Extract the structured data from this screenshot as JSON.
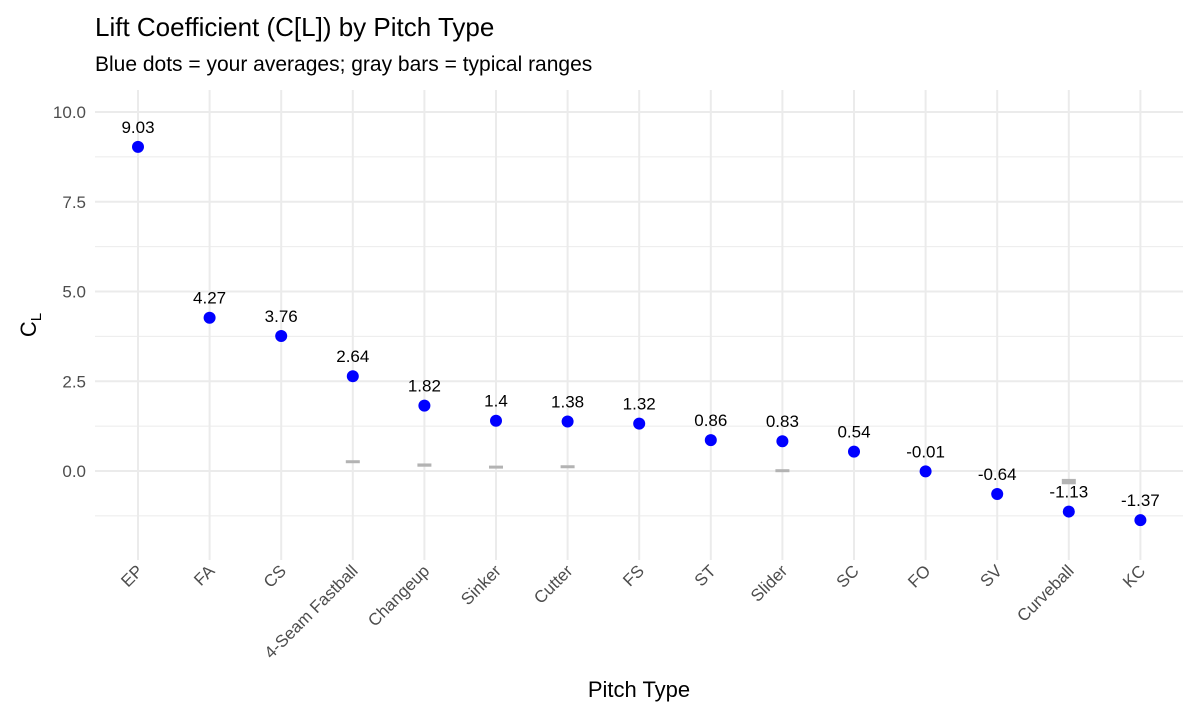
{
  "chart_data": {
    "type": "scatter",
    "title": "Lift Coefficient (C[L]) by Pitch Type",
    "subtitle": "Blue dots = your averages; gray bars = typical ranges",
    "xlabel": "Pitch Type",
    "ylabel_main": "C",
    "ylabel_sub": "L",
    "ylim": [
      -2.0,
      10.5
    ],
    "yticks": [
      0.0,
      2.5,
      5.0,
      7.5,
      10.0
    ],
    "ytick_labels": [
      "0.0",
      "2.5",
      "5.0",
      "7.5",
      "10.0"
    ],
    "grid": true,
    "legend": "none",
    "categories": [
      "EP",
      "FA",
      "CS",
      "4-Seam Fastball",
      "Changeup",
      "Sinker",
      "Cutter",
      "FS",
      "ST",
      "Slider",
      "SC",
      "FO",
      "SV",
      "Curveball",
      "KC"
    ],
    "series": [
      {
        "values": [
          9.03,
          4.27,
          3.76,
          2.64,
          1.82,
          1.4,
          1.38,
          1.32,
          0.86,
          0.83,
          0.54,
          -0.01,
          -0.64,
          -1.13,
          -1.37
        ],
        "labels": [
          "9.03",
          "4.27",
          "3.76",
          "2.64",
          "1.82",
          "1.4",
          "1.38",
          "1.32",
          "0.86",
          "0.83",
          "0.54",
          "-0.01",
          "-0.64",
          "-1.13",
          "-1.37"
        ],
        "color": "#0000ff"
      }
    ],
    "typical_ranges": [
      {
        "category": "4-Seam Fastball",
        "low": 0.22,
        "high": 0.3
      },
      {
        "category": "Changeup",
        "low": 0.12,
        "high": 0.21
      },
      {
        "category": "Sinker",
        "low": 0.07,
        "high": 0.15
      },
      {
        "category": "Cutter",
        "low": 0.12,
        "high": 0.16
      },
      {
        "category": "Slider",
        "low": -0.03,
        "high": 0.05
      },
      {
        "category": "Curveball",
        "low": -0.37,
        "high": -0.22
      }
    ],
    "range_color": "#b3b3b3",
    "grid_color": "#ebebeb"
  }
}
